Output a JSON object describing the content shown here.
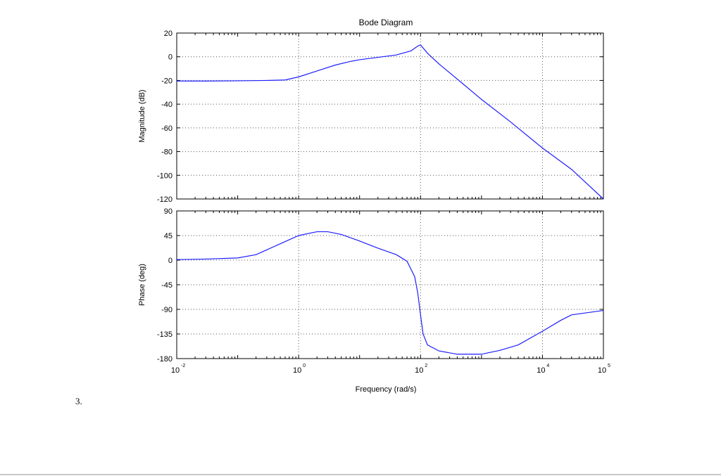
{
  "item_number": "3.",
  "colors": {
    "line": "#1f1fff",
    "axes": "#000000",
    "grid": "#555555"
  },
  "chart_data": [
    {
      "type": "line",
      "panel": "magnitude",
      "title": "Bode Diagram",
      "ylabel": "Magnitude (dB)",
      "xscale": "log",
      "xlim": [
        0.01,
        100000
      ],
      "ylim": [
        -120,
        20
      ],
      "yticks": [
        20,
        0,
        -20,
        -40,
        -60,
        -80,
        -100,
        -120
      ],
      "grid": true,
      "x": [
        0.01,
        0.03,
        0.1,
        0.3,
        0.6,
        1,
        2,
        4,
        7,
        10,
        20,
        40,
        70,
        90,
        100,
        130,
        200,
        500,
        1000,
        3000,
        10000,
        30000,
        100000
      ],
      "y": [
        -20.5,
        -20.5,
        -20.3,
        -20,
        -19.6,
        -17,
        -12,
        -7,
        -4,
        -2.5,
        -0.5,
        1.5,
        5,
        9,
        10,
        3,
        -6,
        -23,
        -36,
        -55,
        -77,
        -95,
        -120
      ]
    },
    {
      "type": "line",
      "panel": "phase",
      "ylabel": "Phase (deg)",
      "xlabel": "Frequency (rad/s)",
      "xscale": "log",
      "xlim": [
        0.01,
        100000
      ],
      "ylim": [
        -180,
        90
      ],
      "yticks": [
        90,
        45,
        0,
        -45,
        -90,
        -135,
        -180
      ],
      "xtick_labels": [
        "10",
        "10",
        "10",
        "10",
        "10"
      ],
      "xtick_exponents": [
        "-2",
        "0",
        "2",
        "4",
        "5"
      ],
      "grid": true,
      "x": [
        0.01,
        0.03,
        0.1,
        0.2,
        0.5,
        1,
        2,
        3,
        5,
        10,
        20,
        40,
        60,
        80,
        90,
        100,
        110,
        130,
        200,
        400,
        1000,
        2000,
        4000,
        10000,
        20000,
        30000,
        100000
      ],
      "y": [
        1,
        2,
        4,
        10,
        30,
        45,
        52,
        52,
        47,
        35,
        22,
        10,
        -2,
        -30,
        -60,
        -100,
        -135,
        -155,
        -166,
        -172,
        -172,
        -165,
        -155,
        -130,
        -110,
        -100,
        -92
      ]
    }
  ]
}
